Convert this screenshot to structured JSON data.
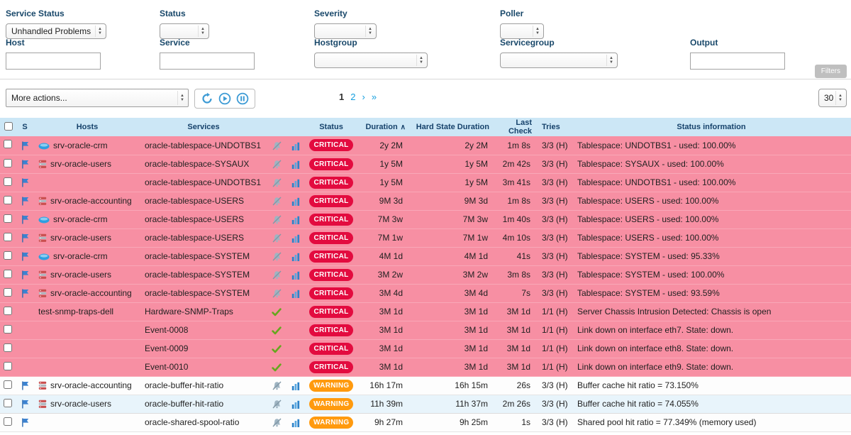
{
  "filters": {
    "row1": [
      {
        "label": "Service Status",
        "value": "Unhandled Problems"
      },
      {
        "label": "Status",
        "value": ""
      },
      {
        "label": "Severity",
        "value": ""
      },
      {
        "label": "Poller",
        "value": ""
      }
    ],
    "row2": [
      {
        "label": "Host",
        "value": ""
      },
      {
        "label": "Service",
        "value": ""
      },
      {
        "label": "Hostgroup",
        "value": ""
      },
      {
        "label": "Servicegroup",
        "value": ""
      },
      {
        "label": "Output",
        "value": ""
      }
    ],
    "filters_button": "Filters"
  },
  "toolbar": {
    "more_actions": "More actions...",
    "icons": [
      "refresh-icon",
      "play-icon",
      "pause-icon"
    ],
    "pagination": {
      "current": "1",
      "links": [
        "2",
        "›",
        "»"
      ]
    },
    "page_size": "30"
  },
  "table": {
    "columns": {
      "s": "S",
      "hosts": "Hosts",
      "services": "Services",
      "status": "Status",
      "duration": "Duration",
      "hard_state_duration": "Hard State Duration",
      "last_check": "Last Check",
      "tries": "Tries",
      "status_information": "Status information"
    },
    "sort_caret": "∧",
    "rows": [
      {
        "checkbox": true,
        "flag_icon": "flag-icon",
        "host_icon": "cloud-icon",
        "host": "srv-oracle-crm",
        "service": "oracle-tablespace-UNDOTBS1",
        "service_icons": [
          "muted-bell-icon",
          "chart-icon"
        ],
        "status": "CRITICAL",
        "duration": "2y 2M",
        "hard_state_duration": "2y 2M",
        "last_check": "1m 8s",
        "tries": "3/3 (H)",
        "status_information": "Tablespace: UNDOTBS1 - used: 100.00%",
        "bg": "critical"
      },
      {
        "checkbox": true,
        "flag_icon": "flag-icon",
        "host_icon": "database-icon",
        "host": "srv-oracle-users",
        "service": "oracle-tablespace-SYSAUX",
        "service_icons": [
          "muted-bell-icon",
          "chart-icon"
        ],
        "status": "CRITICAL",
        "duration": "1y 5M",
        "hard_state_duration": "1y 5M",
        "last_check": "2m 42s",
        "tries": "3/3 (H)",
        "status_information": "Tablespace: SYSAUX - used: 100.00%",
        "bg": "critical"
      },
      {
        "checkbox": true,
        "flag_icon": "flag-icon",
        "host_icon": null,
        "host": "",
        "service": "oracle-tablespace-UNDOTBS1",
        "service_icons": [
          "muted-bell-icon",
          "chart-icon"
        ],
        "status": "CRITICAL",
        "duration": "1y 5M",
        "hard_state_duration": "1y 5M",
        "last_check": "3m 41s",
        "tries": "3/3 (H)",
        "status_information": "Tablespace: UNDOTBS1 - used: 100.00%",
        "bg": "critical"
      },
      {
        "checkbox": true,
        "flag_icon": "flag-icon",
        "host_icon": "database-icon",
        "host": "srv-oracle-accounting",
        "service": "oracle-tablespace-USERS",
        "service_icons": [
          "muted-bell-icon",
          "chart-icon"
        ],
        "status": "CRITICAL",
        "duration": "9M 3d",
        "hard_state_duration": "9M 3d",
        "last_check": "1m 8s",
        "tries": "3/3 (H)",
        "status_information": "Tablespace: USERS - used: 100.00%",
        "bg": "critical"
      },
      {
        "checkbox": true,
        "flag_icon": "flag-icon",
        "host_icon": "cloud-icon",
        "host": "srv-oracle-crm",
        "service": "oracle-tablespace-USERS",
        "service_icons": [
          "muted-bell-icon",
          "chart-icon"
        ],
        "status": "CRITICAL",
        "duration": "7M 3w",
        "hard_state_duration": "7M 3w",
        "last_check": "1m 40s",
        "tries": "3/3 (H)",
        "status_information": "Tablespace: USERS - used: 100.00%",
        "bg": "critical"
      },
      {
        "checkbox": true,
        "flag_icon": "flag-icon",
        "host_icon": "database-icon",
        "host": "srv-oracle-users",
        "service": "oracle-tablespace-USERS",
        "service_icons": [
          "muted-bell-icon",
          "chart-icon"
        ],
        "status": "CRITICAL",
        "duration": "7M 1w",
        "hard_state_duration": "7M 1w",
        "last_check": "4m 10s",
        "tries": "3/3 (H)",
        "status_information": "Tablespace: USERS - used: 100.00%",
        "bg": "critical"
      },
      {
        "checkbox": true,
        "flag_icon": "flag-icon",
        "host_icon": "cloud-icon",
        "host": "srv-oracle-crm",
        "service": "oracle-tablespace-SYSTEM",
        "service_icons": [
          "muted-bell-icon",
          "chart-icon"
        ],
        "status": "CRITICAL",
        "duration": "4M 1d",
        "hard_state_duration": "4M 1d",
        "last_check": "41s",
        "tries": "3/3 (H)",
        "status_information": "Tablespace: SYSTEM - used: 95.33%",
        "bg": "critical"
      },
      {
        "checkbox": true,
        "flag_icon": "flag-icon",
        "host_icon": "database-icon",
        "host": "srv-oracle-users",
        "service": "oracle-tablespace-SYSTEM",
        "service_icons": [
          "muted-bell-icon",
          "chart-icon"
        ],
        "status": "CRITICAL",
        "duration": "3M 2w",
        "hard_state_duration": "3M 2w",
        "last_check": "3m 8s",
        "tries": "3/3 (H)",
        "status_information": "Tablespace: SYSTEM - used: 100.00%",
        "bg": "critical"
      },
      {
        "checkbox": true,
        "flag_icon": "flag-icon",
        "host_icon": "database-icon",
        "host": "srv-oracle-accounting",
        "service": "oracle-tablespace-SYSTEM",
        "service_icons": [
          "muted-bell-icon",
          "chart-icon"
        ],
        "status": "CRITICAL",
        "duration": "3M 4d",
        "hard_state_duration": "3M 4d",
        "last_check": "7s",
        "tries": "3/3 (H)",
        "status_information": "Tablespace: SYSTEM - used: 93.59%",
        "bg": "critical"
      },
      {
        "checkbox": true,
        "flag_icon": null,
        "host_icon": null,
        "host": "test-snmp-traps-dell",
        "service": "Hardware-SNMP-Traps",
        "service_icons": [
          "check-icon"
        ],
        "status": "CRITICAL",
        "duration": "3M 1d",
        "hard_state_duration": "3M 1d",
        "last_check": "3M 1d",
        "tries": "1/1 (H)",
        "status_information": "Server Chassis Intrusion Detected: Chassis is open",
        "bg": "critical"
      },
      {
        "checkbox": true,
        "flag_icon": null,
        "host_icon": null,
        "host": "",
        "service": "Event-0008",
        "service_icons": [
          "check-icon"
        ],
        "status": "CRITICAL",
        "duration": "3M 1d",
        "hard_state_duration": "3M 1d",
        "last_check": "3M 1d",
        "tries": "1/1 (H)",
        "status_information": "Link down on interface eth7. State: down.",
        "bg": "critical"
      },
      {
        "checkbox": true,
        "flag_icon": null,
        "host_icon": null,
        "host": "",
        "service": "Event-0009",
        "service_icons": [
          "check-icon"
        ],
        "status": "CRITICAL",
        "duration": "3M 1d",
        "hard_state_duration": "3M 1d",
        "last_check": "3M 1d",
        "tries": "1/1 (H)",
        "status_information": "Link down on interface eth8. State: down.",
        "bg": "critical"
      },
      {
        "checkbox": true,
        "flag_icon": null,
        "host_icon": null,
        "host": "",
        "service": "Event-0010",
        "service_icons": [
          "check-icon"
        ],
        "status": "CRITICAL",
        "duration": "3M 1d",
        "hard_state_duration": "3M 1d",
        "last_check": "3M 1d",
        "tries": "1/1 (H)",
        "status_information": "Link down on interface eth9. State: down.",
        "bg": "critical"
      },
      {
        "checkbox": true,
        "flag_icon": "flag-icon",
        "host_icon": "database-icon",
        "host": "srv-oracle-accounting",
        "service": "oracle-buffer-hit-ratio",
        "service_icons": [
          "muted-bell-icon",
          "chart-icon"
        ],
        "status": "WARNING",
        "duration": "16h 17m",
        "hard_state_duration": "16h 15m",
        "last_check": "26s",
        "tries": "3/3 (H)",
        "status_information": "Buffer cache hit ratio = 73.150%",
        "bg": "white"
      },
      {
        "checkbox": true,
        "flag_icon": "flag-icon",
        "host_icon": "database-icon",
        "host": "srv-oracle-users",
        "service": "oracle-buffer-hit-ratio",
        "service_icons": [
          "muted-bell-icon",
          "chart-icon"
        ],
        "status": "WARNING",
        "duration": "11h 39m",
        "hard_state_duration": "11h 37m",
        "last_check": "2m 26s",
        "tries": "3/3 (H)",
        "status_information": "Buffer cache hit ratio = 74.055%",
        "bg": "blue"
      },
      {
        "checkbox": true,
        "flag_icon": "flag-icon",
        "host_icon": null,
        "host": "",
        "service": "oracle-shared-spool-ratio",
        "service_icons": [
          "muted-bell-icon",
          "chart-icon"
        ],
        "status": "WARNING",
        "duration": "9h 27m",
        "hard_state_duration": "9h 25m",
        "last_check": "1s",
        "tries": "3/3 (H)",
        "status_information": "Shared pool hit ratio = 77.349% (memory used)",
        "bg": "white"
      }
    ]
  }
}
